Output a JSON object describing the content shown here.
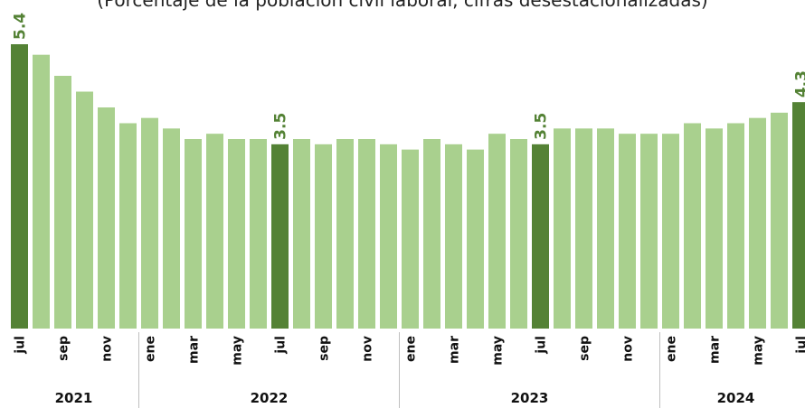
{
  "subtitle": "(Porcentaje de la población civil laboral, cifras desestacionalizadas)",
  "colors": {
    "normal": "#a9d08e",
    "highlight": "#548235",
    "label": "#548235"
  },
  "chart_data": {
    "type": "bar",
    "ylim": [
      0,
      5.4
    ],
    "month_labels": [
      "jul",
      "",
      "sep",
      "",
      "nov",
      "",
      "ene",
      "",
      "mar",
      "",
      "may",
      "",
      "jul",
      "",
      "sep",
      "",
      "nov",
      "",
      "ene",
      "",
      "mar",
      "",
      "may",
      "",
      "jul",
      "",
      "sep",
      "",
      "nov",
      "",
      "ene",
      "",
      "mar",
      "",
      "may",
      "",
      "jul"
    ],
    "years": [
      {
        "label": "2021",
        "start": 0,
        "count": 6
      },
      {
        "label": "2022",
        "start": 6,
        "count": 12
      },
      {
        "label": "2023",
        "start": 18,
        "count": 12
      },
      {
        "label": "2024",
        "start": 30,
        "count": 7
      }
    ],
    "values": [
      5.4,
      5.2,
      4.8,
      4.5,
      4.2,
      3.9,
      4.0,
      3.8,
      3.6,
      3.7,
      3.6,
      3.6,
      3.5,
      3.6,
      3.5,
      3.6,
      3.6,
      3.5,
      3.4,
      3.6,
      3.5,
      3.4,
      3.7,
      3.6,
      3.5,
      3.8,
      3.8,
      3.8,
      3.7,
      3.7,
      3.7,
      3.9,
      3.8,
      3.9,
      4.0,
      4.1,
      4.3
    ],
    "highlighted": [
      {
        "index": 0,
        "label": "5.4"
      },
      {
        "index": 12,
        "label": "3.5"
      },
      {
        "index": 24,
        "label": "3.5"
      },
      {
        "index": 36,
        "label": "4.3"
      }
    ]
  }
}
